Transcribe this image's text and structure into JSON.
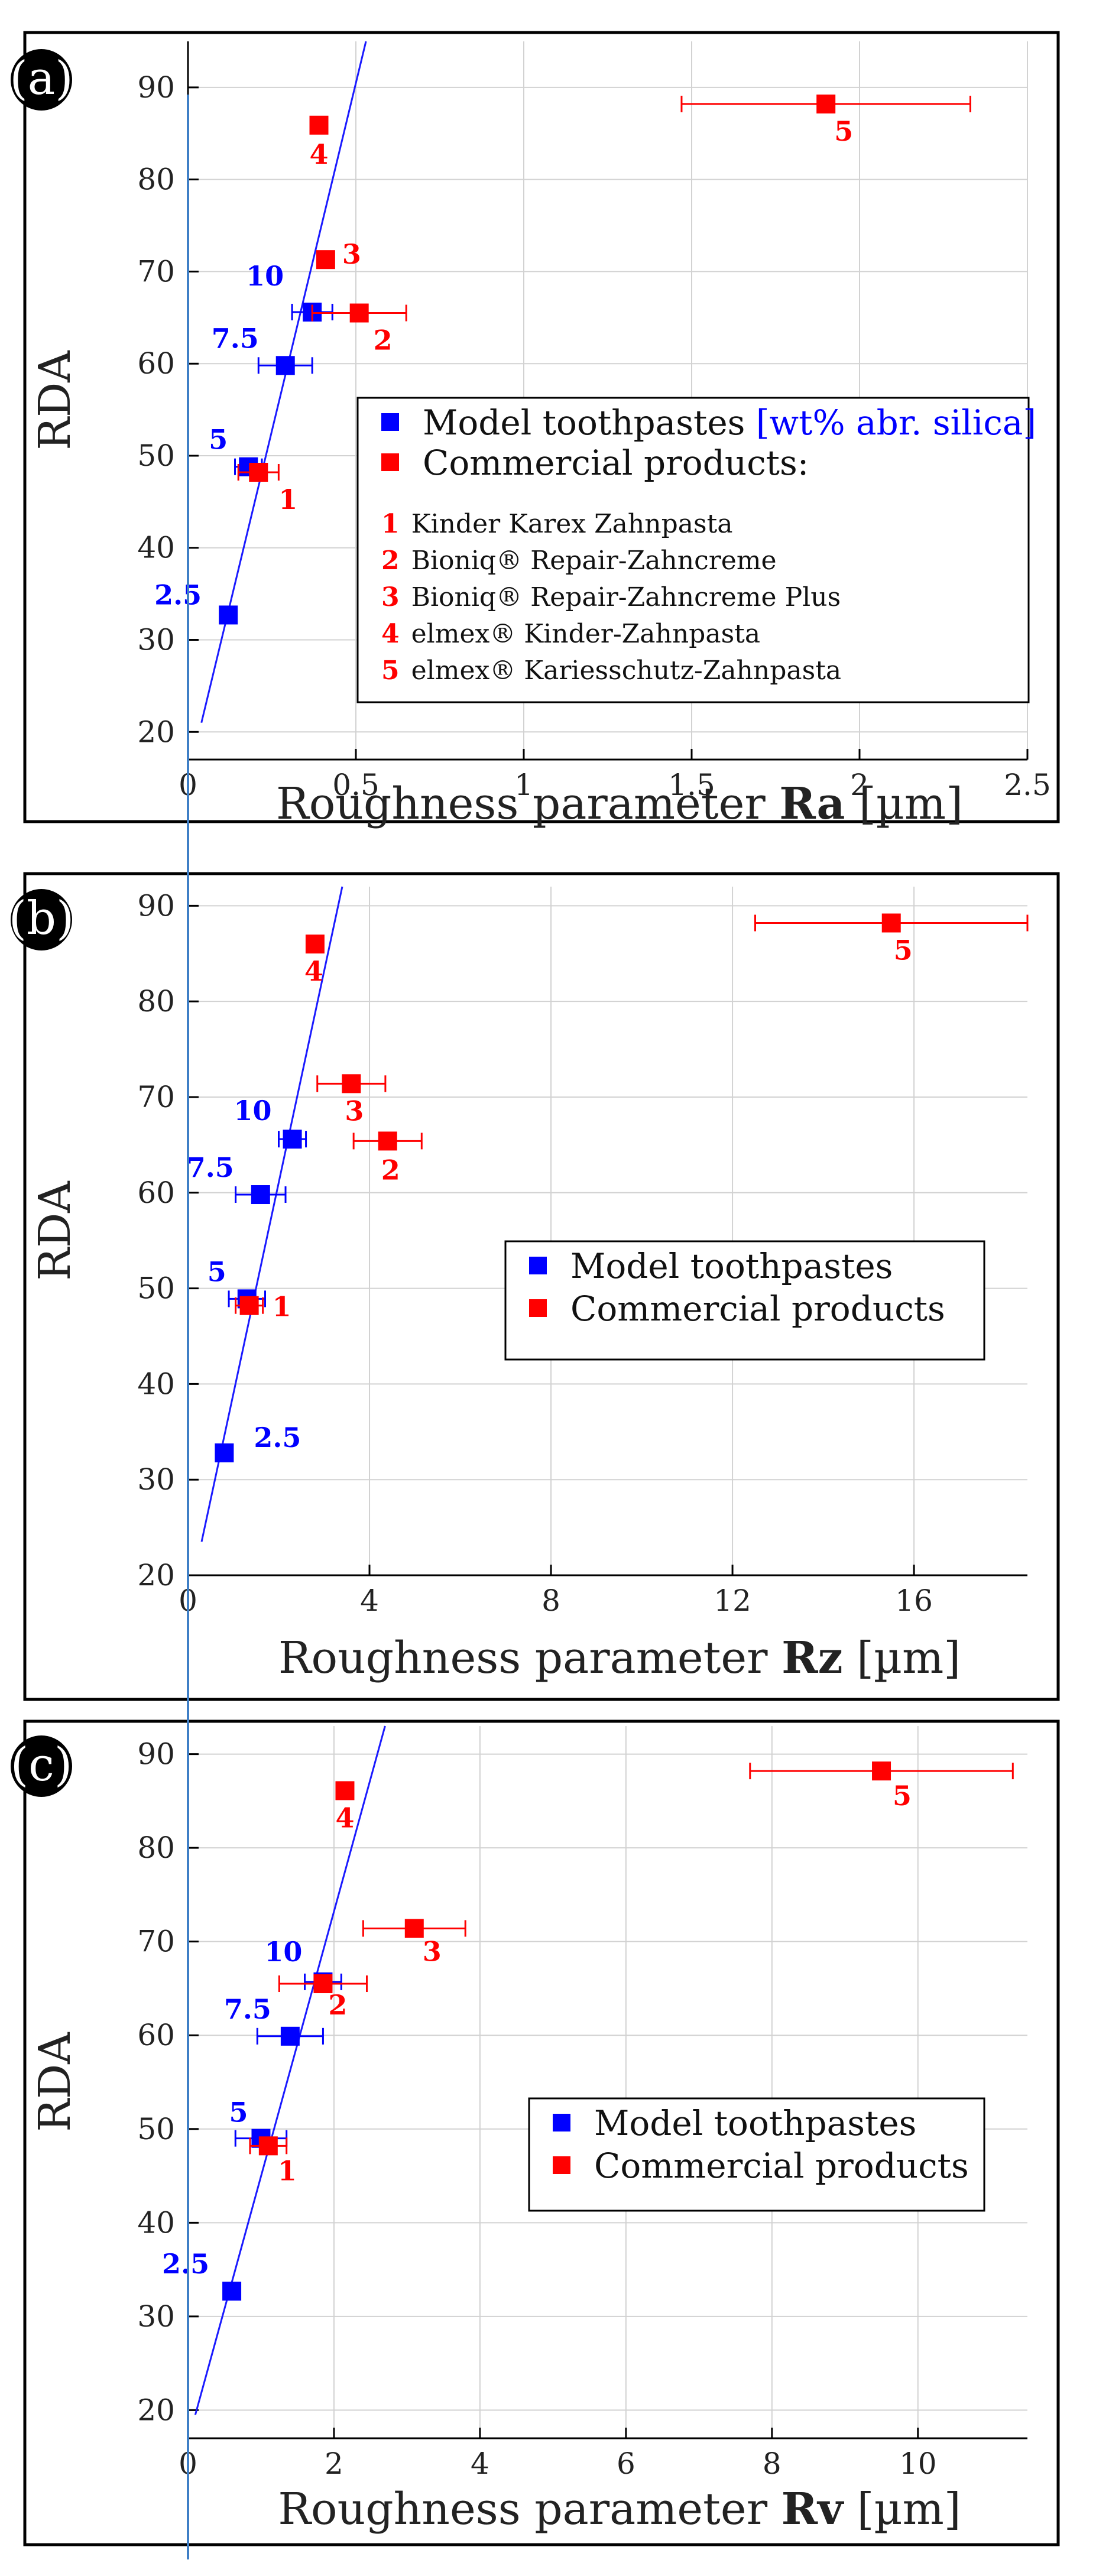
{
  "colors": {
    "model": "#0000ff",
    "commercial": "#ff0000",
    "grid": "#d2d2d2",
    "fit": "#1a1aff",
    "guide": "#3f7fc6",
    "frame": "#000000"
  },
  "chart_data": [
    {
      "type": "scatter",
      "panel_label": "(a)",
      "xlabel_prefix": "Roughness parameter ",
      "xlabel_param": "Ra",
      "xlabel_unit": " [µm]",
      "ylabel": "RDA",
      "xlim": [
        0,
        2.5
      ],
      "ylim": [
        17,
        95
      ],
      "x_ticks": [
        0,
        0.5,
        1,
        1.5,
        2,
        2.5
      ],
      "x_tick_labels": [
        "0",
        "0.5",
        "1",
        "1.5",
        "2",
        "2.5"
      ],
      "y_ticks": [
        20,
        30,
        40,
        50,
        60,
        70,
        80,
        90
      ],
      "y_tick_labels": [
        "20",
        "30",
        "40",
        "50",
        "60",
        "70",
        "80",
        "90"
      ],
      "fit_line": {
        "x": [
          0.04,
          0.53
        ],
        "y": [
          21,
          95
        ]
      },
      "series": [
        {
          "name": "Model toothpastes",
          "name_suffix": "[wt% abr. silica]",
          "color": "#0000ff",
          "points": [
            {
              "label": "2.5",
              "x": 0.12,
              "y": 32.7,
              "xerr": 0.02
            },
            {
              "label": "5",
              "x": 0.18,
              "y": 48.8,
              "xerr": 0.04
            },
            {
              "label": "7.5",
              "x": 0.29,
              "y": 59.8,
              "xerr": 0.08
            },
            {
              "label": "10",
              "x": 0.37,
              "y": 65.6,
              "xerr": 0.06
            }
          ]
        },
        {
          "name": "Commercial products:",
          "color": "#ff0000",
          "points": [
            {
              "label": "1",
              "x": 0.21,
              "y": 48.2,
              "xerr": 0.06
            },
            {
              "label": "2",
              "x": 0.51,
              "y": 65.5,
              "xerr": 0.14
            },
            {
              "label": "3",
              "x": 0.41,
              "y": 71.3,
              "xerr": 0.0
            },
            {
              "label": "4",
              "x": 0.39,
              "y": 85.9,
              "xerr": 0.0
            },
            {
              "label": "5",
              "x": 1.9,
              "y": 88.2,
              "xerr": 0.43
            }
          ]
        }
      ],
      "products": [
        {
          "num": "1",
          "name": "Kinder Karex Zahnpasta"
        },
        {
          "num": "2",
          "name": "Bioniq® Repair-Zahncreme"
        },
        {
          "num": "3",
          "name": "Bioniq® Repair-Zahncreme Plus"
        },
        {
          "num": "4",
          "name": "elmex® Kinder-Zahnpasta"
        },
        {
          "num": "5",
          "name": "elmex® Kariesschutz-Zahnpasta"
        }
      ]
    },
    {
      "type": "scatter",
      "panel_label": "(b)",
      "xlabel_prefix": "Roughness parameter ",
      "xlabel_param": "Rz",
      "xlabel_unit": " [µm]",
      "ylabel": "RDA",
      "xlim": [
        0,
        18.5
      ],
      "ylim": [
        20,
        92
      ],
      "x_ticks": [
        0,
        4,
        8,
        12,
        16
      ],
      "x_tick_labels": [
        "0",
        "4",
        "8",
        "12",
        "16"
      ],
      "y_ticks": [
        20,
        30,
        40,
        50,
        60,
        70,
        80,
        90
      ],
      "y_tick_labels": [
        "20",
        "30",
        "40",
        "50",
        "60",
        "70",
        "80",
        "90"
      ],
      "fit_line": {
        "x": [
          0.3,
          3.4
        ],
        "y": [
          23.5,
          92
        ]
      },
      "series": [
        {
          "name": "Model toothpastes",
          "color": "#0000ff",
          "points": [
            {
              "label": "2.5",
              "x": 0.8,
              "y": 32.8,
              "xerr": 0.0
            },
            {
              "label": "5",
              "x": 1.3,
              "y": 48.9,
              "xerr": 0.4
            },
            {
              "label": "7.5",
              "x": 1.6,
              "y": 59.8,
              "xerr": 0.55
            },
            {
              "label": "10",
              "x": 2.3,
              "y": 65.6,
              "xerr": 0.3
            }
          ]
        },
        {
          "name": "Commercial products",
          "color": "#ff0000",
          "points": [
            {
              "label": "1",
              "x": 1.35,
              "y": 48.2,
              "xerr": 0.3
            },
            {
              "label": "2",
              "x": 4.4,
              "y": 65.4,
              "xerr": 0.75
            },
            {
              "label": "3",
              "x": 3.6,
              "y": 71.4,
              "xerr": 0.75
            },
            {
              "label": "4",
              "x": 2.8,
              "y": 86.0,
              "xerr": 0.0
            },
            {
              "label": "5",
              "x": 15.5,
              "y": 88.2,
              "xerr": 3.0
            }
          ]
        }
      ]
    },
    {
      "type": "scatter",
      "panel_label": "(c)",
      "xlabel_prefix": "Roughness parameter ",
      "xlabel_param": "Rv",
      "xlabel_unit": " [µm]",
      "ylabel": "RDA",
      "xlim": [
        0,
        11.5
      ],
      "ylim": [
        17,
        93
      ],
      "x_ticks": [
        0,
        2,
        4,
        6,
        8,
        10
      ],
      "x_tick_labels": [
        "0",
        "2",
        "4",
        "6",
        "8",
        "10"
      ],
      "y_ticks": [
        20,
        30,
        40,
        50,
        60,
        70,
        80,
        90
      ],
      "y_tick_labels": [
        "20",
        "30",
        "40",
        "50",
        "60",
        "70",
        "80",
        "90"
      ],
      "fit_line": {
        "x": [
          0.1,
          2.7
        ],
        "y": [
          19.5,
          93
        ]
      },
      "series": [
        {
          "name": "Model toothpastes",
          "color": "#0000ff",
          "points": [
            {
              "label": "2.5",
              "x": 0.6,
              "y": 32.7,
              "xerr": 0.0
            },
            {
              "label": "5",
              "x": 1.0,
              "y": 49.0,
              "xerr": 0.35
            },
            {
              "label": "7.5",
              "x": 1.4,
              "y": 59.9,
              "xerr": 0.45
            },
            {
              "label": "10",
              "x": 1.85,
              "y": 65.7,
              "xerr": 0.25
            }
          ]
        },
        {
          "name": "Commercial products",
          "color": "#ff0000",
          "points": [
            {
              "label": "1",
              "x": 1.1,
              "y": 48.2,
              "xerr": 0.25
            },
            {
              "label": "2",
              "x": 1.85,
              "y": 65.5,
              "xerr": 0.6
            },
            {
              "label": "3",
              "x": 3.1,
              "y": 71.4,
              "xerr": 0.7
            },
            {
              "label": "4",
              "x": 2.15,
              "y": 86.1,
              "xerr": 0.0
            },
            {
              "label": "5",
              "x": 9.5,
              "y": 88.2,
              "xerr": 1.8
            }
          ]
        }
      ]
    }
  ]
}
